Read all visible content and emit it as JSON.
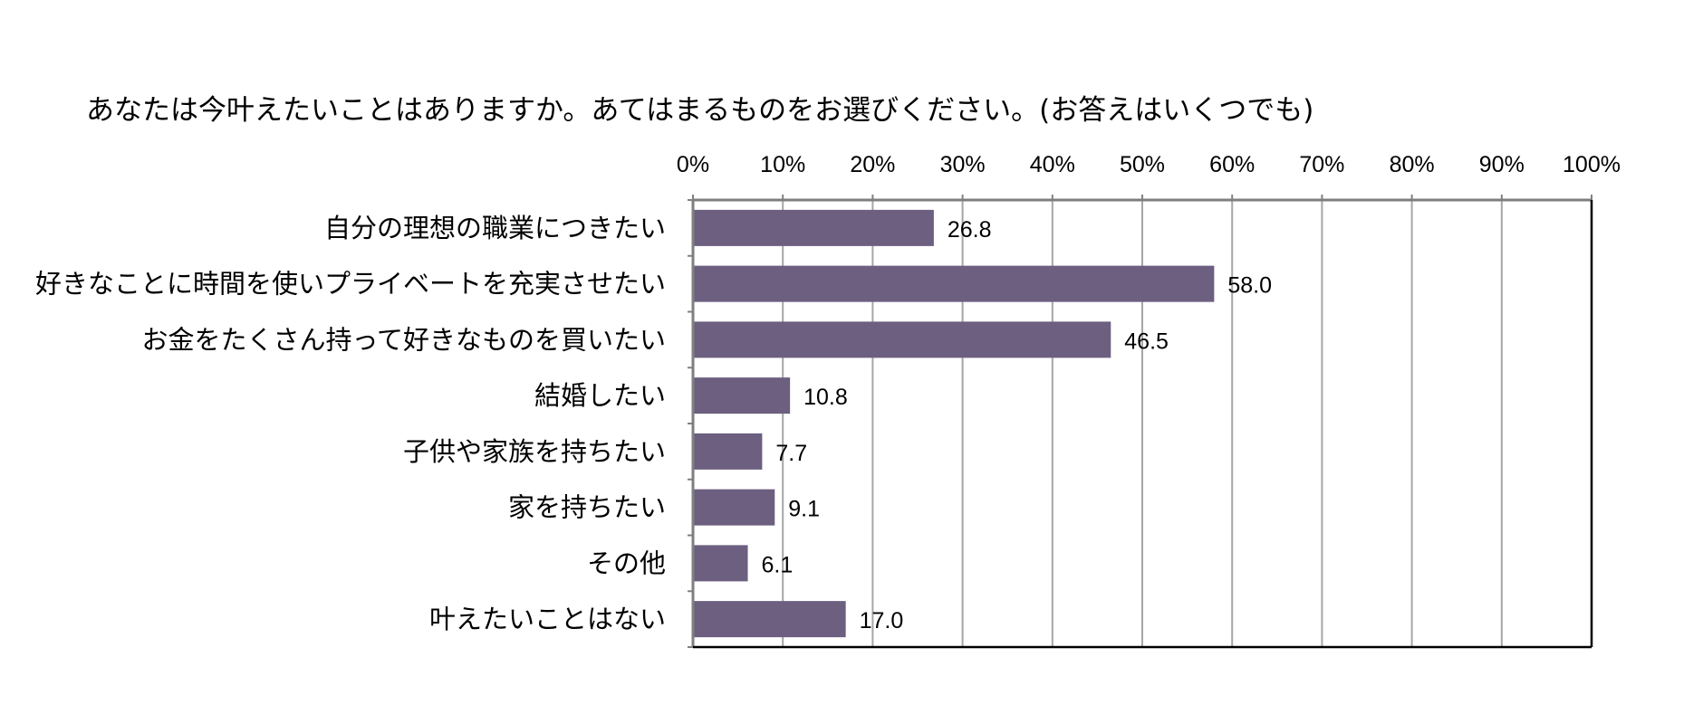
{
  "chart_data": {
    "type": "bar",
    "orientation": "horizontal",
    "title": "あなたは今叶えたいことはありますか。あてはまるものをお選びください。(お答えはいくつでも)",
    "categories": [
      "自分の理想の職業につきたい",
      "好きなことに時間を使いプライベートを充実させたい",
      "お金をたくさん持って好きなものを買いたい",
      "結婚したい",
      "子供や家族を持ちたい",
      "家を持ちたい",
      "その他",
      "叶えたいことはない"
    ],
    "values": [
      26.8,
      58.0,
      46.5,
      10.8,
      7.7,
      9.1,
      6.1,
      17.0
    ],
    "value_labels": [
      "26.8",
      "58.0",
      "46.5",
      "10.8",
      "7.7",
      "9.1",
      "6.1",
      "17.0"
    ],
    "xlim": [
      0,
      100
    ],
    "ticks": [
      "0%",
      "10%",
      "20%",
      "30%",
      "40%",
      "50%",
      "60%",
      "70%",
      "80%",
      "90%",
      "100%"
    ],
    "xlabel": "",
    "ylabel": "",
    "axis_position": "top",
    "grid": true,
    "bar_color": "#6c5f80",
    "grid_color": "#a6a6a6",
    "frame_color": "#000000"
  }
}
